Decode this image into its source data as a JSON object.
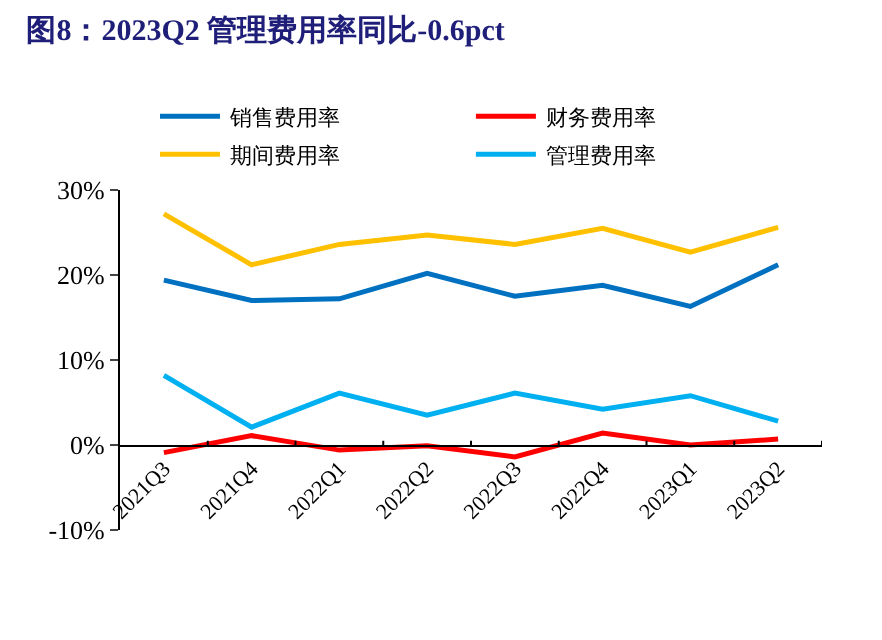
{
  "chart_data": {
    "type": "line",
    "title": "图8：2023Q2 管理费用率同比-0.6pct",
    "categories": [
      "2021Q3",
      "2021Q4",
      "2022Q1",
      "2022Q2",
      "2022Q3",
      "2022Q4",
      "2023Q1",
      "2023Q2"
    ],
    "series": [
      {
        "name": "销售费用率",
        "color": "#0070c0",
        "values": [
          19.4,
          17.0,
          17.2,
          20.2,
          17.5,
          18.8,
          16.3,
          21.2
        ]
      },
      {
        "name": "财务费用率",
        "color": "#ff0000",
        "values": [
          -0.9,
          1.1,
          -0.6,
          -0.1,
          -1.4,
          1.4,
          0.0,
          0.7
        ]
      },
      {
        "name": "期间费用率",
        "color": "#ffc000",
        "values": [
          27.2,
          21.2,
          23.6,
          24.7,
          23.6,
          25.5,
          22.7,
          25.6
        ]
      },
      {
        "name": "管理费用率",
        "color": "#00b0f0",
        "values": [
          8.2,
          2.1,
          6.1,
          3.5,
          6.1,
          4.2,
          5.8,
          2.8
        ]
      }
    ],
    "ylim": [
      -10,
      30
    ],
    "yticks": [
      {
        "value": -10,
        "label": "-10%"
      },
      {
        "value": 0,
        "label": "0%"
      },
      {
        "value": 10,
        "label": "10%"
      },
      {
        "value": 20,
        "label": "20%"
      },
      {
        "value": 30,
        "label": "30%"
      }
    ],
    "legend": "top",
    "marker": "none",
    "line_style": "solid"
  }
}
